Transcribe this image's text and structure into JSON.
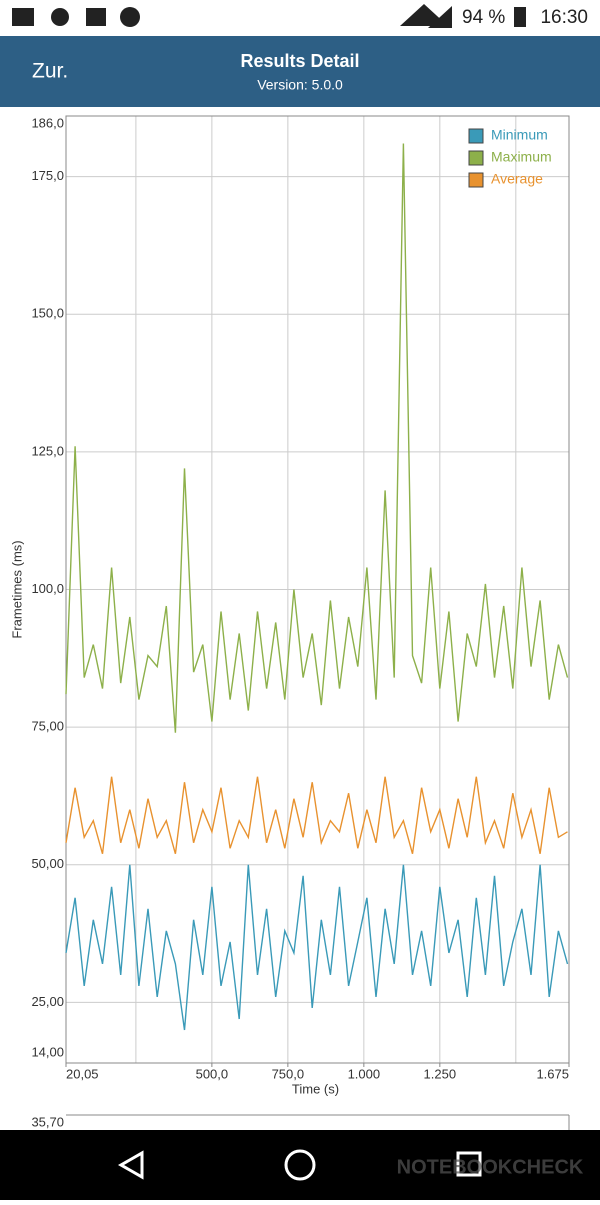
{
  "status_bar": {
    "battery": "94 %",
    "time": "16:30"
  },
  "header": {
    "back": "Zur.",
    "title": "Results Detail",
    "subtitle": "Version: 5.0.0"
  },
  "chart_data": {
    "type": "line",
    "xlabel": "Time (s)",
    "ylabel": "Frametimes (ms)",
    "x": [
      20,
      50,
      80,
      110,
      140,
      170,
      200,
      230,
      260,
      290,
      320,
      350,
      380,
      410,
      440,
      470,
      500,
      530,
      560,
      590,
      620,
      650,
      680,
      710,
      740,
      770,
      800,
      830,
      860,
      890,
      920,
      950,
      980,
      1010,
      1040,
      1070,
      1100,
      1130,
      1160,
      1190,
      1220,
      1250,
      1280,
      1310,
      1340,
      1370,
      1400,
      1430,
      1460,
      1490,
      1520,
      1550,
      1580,
      1610,
      1640,
      1670
    ],
    "series": [
      {
        "name": "Minimum",
        "color": "#3a9ab8",
        "values": [
          34,
          44,
          28,
          40,
          32,
          46,
          30,
          50,
          28,
          42,
          26,
          38,
          32,
          20,
          40,
          30,
          46,
          28,
          36,
          22,
          50,
          30,
          42,
          26,
          38,
          34,
          48,
          24,
          40,
          30,
          46,
          28,
          36,
          44,
          26,
          42,
          32,
          50,
          30,
          38,
          28,
          46,
          34,
          40,
          26,
          44,
          30,
          48,
          28,
          36,
          42,
          30,
          50,
          26,
          38,
          32
        ]
      },
      {
        "name": "Maximum",
        "color": "#8db04a",
        "values": [
          81,
          126,
          84,
          90,
          82,
          104,
          83,
          95,
          80,
          88,
          86,
          97,
          74,
          122,
          85,
          90,
          76,
          96,
          80,
          92,
          78,
          96,
          82,
          94,
          80,
          100,
          84,
          92,
          79,
          98,
          82,
          95,
          86,
          104,
          80,
          118,
          84,
          181,
          88,
          83,
          104,
          82,
          96,
          76,
          92,
          86,
          101,
          84,
          97,
          82,
          104,
          86,
          98,
          80,
          90,
          84
        ]
      },
      {
        "name": "Average",
        "color": "#e8922f",
        "values": [
          54,
          64,
          55,
          58,
          52,
          66,
          54,
          60,
          53,
          62,
          55,
          58,
          52,
          65,
          54,
          60,
          56,
          64,
          53,
          58,
          55,
          66,
          54,
          60,
          53,
          62,
          55,
          65,
          54,
          58,
          56,
          63,
          53,
          60,
          54,
          66,
          55,
          58,
          52,
          64,
          56,
          60,
          53,
          62,
          55,
          66,
          54,
          58,
          53,
          63,
          55,
          60,
          52,
          64,
          55,
          56
        ]
      }
    ],
    "xlim": [
      20.05,
      1675
    ],
    "xticks": [
      {
        "value": 20.05,
        "label": "20,05"
      },
      {
        "value": 500,
        "label": "500,0"
      },
      {
        "value": 750,
        "label": "750,0"
      },
      {
        "value": 1000,
        "label": "1.000"
      },
      {
        "value": 1250,
        "label": "1.250"
      },
      {
        "value": 1675,
        "label": "1.675"
      }
    ],
    "xgrid": [
      250,
      500,
      750,
      1000,
      1250,
      1500
    ],
    "ylim": [
      14,
      186
    ],
    "yticks": [
      {
        "value": 14,
        "label": "14,00"
      },
      {
        "value": 25,
        "label": "25,00"
      },
      {
        "value": 50,
        "label": "50,00"
      },
      {
        "value": 75,
        "label": "75,00"
      },
      {
        "value": 100,
        "label": "100,0"
      },
      {
        "value": 125,
        "label": "125,0"
      },
      {
        "value": 150,
        "label": "150,0"
      },
      {
        "value": 175,
        "label": "175,0"
      },
      {
        "value": 186,
        "label": "186,0"
      }
    ],
    "grid": true,
    "legend": "top-right"
  },
  "next_chart_label": "35,70",
  "watermark": "NOTEBOOKCHECK"
}
